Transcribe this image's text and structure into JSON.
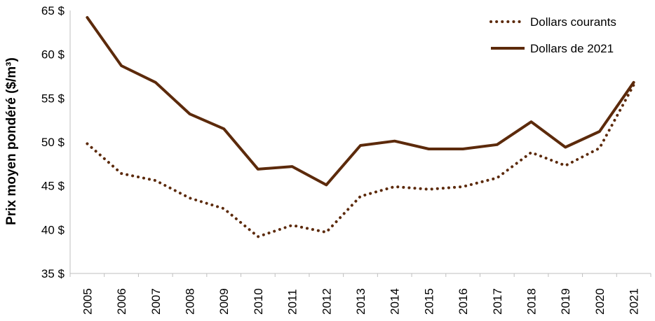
{
  "chart_data": {
    "type": "line",
    "title": "",
    "xlabel": "",
    "ylabel": "Prix moyen pondéré ($/m³)",
    "ylim": [
      35,
      65
    ],
    "y_ticks": [
      35,
      40,
      45,
      50,
      55,
      60,
      65
    ],
    "y_tick_format": "{v} $",
    "grid": false,
    "legend": "top-right",
    "categories": [
      "2005",
      "2006",
      "2007",
      "2008",
      "2009",
      "2010",
      "2011",
      "2012",
      "2013",
      "2014",
      "2015",
      "2016",
      "2017",
      "2018",
      "2019",
      "2020",
      "2021"
    ],
    "series": [
      {
        "name": "Dollars courants",
        "style": "dotted",
        "color": "#5c2a0b",
        "values": [
          49.8,
          46.4,
          45.6,
          43.6,
          42.4,
          39.2,
          40.5,
          39.7,
          43.8,
          44.9,
          44.6,
          44.9,
          45.9,
          48.8,
          47.3,
          49.3,
          56.5
        ]
      },
      {
        "name": "Dollars de 2021",
        "style": "solid",
        "color": "#5c2a0b",
        "values": [
          64.2,
          58.7,
          56.8,
          53.2,
          51.5,
          46.9,
          47.2,
          45.1,
          49.6,
          50.1,
          49.2,
          49.2,
          49.7,
          52.3,
          49.4,
          51.2,
          56.8
        ]
      }
    ]
  }
}
